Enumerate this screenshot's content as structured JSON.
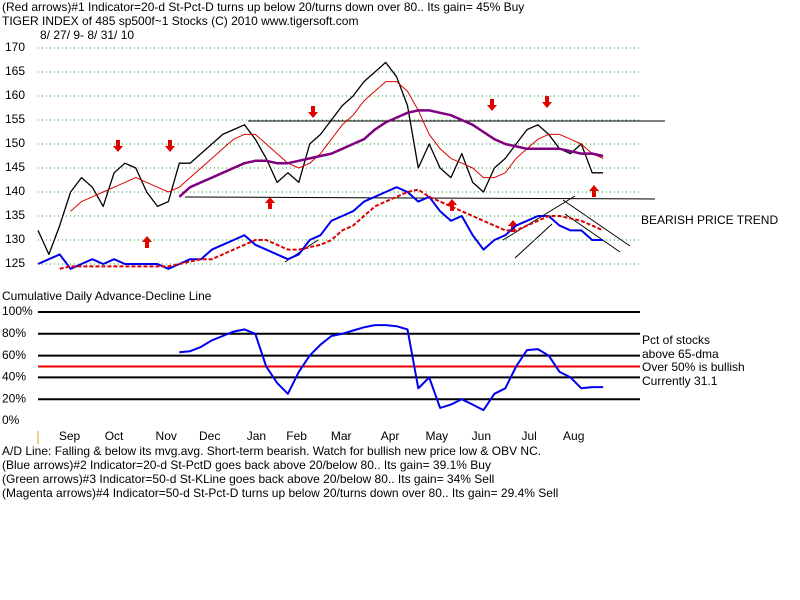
{
  "header": [
    "(Red arrows)#1 Indicator=20-d St-Pct-D turns up below 20/turns down over 80.. Its gain= 45% Buy"
  ],
  "footer": [
    "A/D Line: Falling & below its mvg.avg. Short-term bearish. Watch for bullish new price low & OBV NC.",
    "(Blue arrows)#2 Indicator=20-d St-PctD goes back above 20/below 80.. Its gain= 39.1% Buy",
    "(Green arrows)#3 Indicator=50-d St-KLine goes back above 20/below 80.. Its gain= 34% Sell",
    "(Magenta arrows)#4 Indicator=50-d St-Pct-D turns up below 20/turns down over 80.. Its gain= 29.4% Sell"
  ],
  "chart_data": [
    {
      "type": "line",
      "title": "TIGER INDEX of  485 sp500f~1 Stocks  (C) 2010  www.tigersoft.com",
      "subtitle": "8/ 27/ 9- 8/ 31/ 10",
      "annotations": [
        "BEARISH PRICE TREND"
      ],
      "xlim": [
        0,
        55.4
      ],
      "ylim": [
        122.5,
        172
      ],
      "yticks": [
        125,
        130,
        135,
        140,
        145,
        150,
        155,
        160,
        165,
        170
      ],
      "grid": true,
      "grid_color": "#00a000",
      "series": [
        {
          "color": "#000000",
          "width": 1.3,
          "values": [
            132,
            127,
            133,
            140,
            143,
            141,
            137,
            144,
            146,
            145,
            140,
            137,
            138,
            146,
            146,
            148,
            150,
            152,
            153,
            154,
            151,
            147,
            142,
            144,
            142,
            150,
            152,
            155,
            158,
            160,
            163,
            165,
            167,
            164,
            158,
            145,
            150,
            145,
            143,
            148,
            142,
            140,
            145,
            147,
            150,
            153,
            154,
            152,
            149,
            148,
            150,
            144,
            144
          ]
        },
        {
          "color": "#dd0000",
          "width": 1,
          "values": [
            null,
            null,
            null,
            136,
            138,
            139,
            140,
            141,
            142,
            143,
            142,
            141,
            140,
            141,
            143,
            145,
            147,
            149,
            151,
            152,
            152,
            150,
            148,
            146,
            145,
            146,
            148,
            151,
            154,
            156,
            159,
            161,
            163,
            163,
            161,
            157,
            152,
            149,
            147,
            146,
            145,
            143,
            143,
            144,
            147,
            149,
            151,
            152,
            152,
            151,
            150,
            148,
            147
          ]
        },
        {
          "color": "#800080",
          "width": 2.5,
          "values": [
            null,
            null,
            null,
            null,
            null,
            null,
            null,
            null,
            null,
            null,
            null,
            null,
            null,
            139,
            141,
            142,
            143,
            144,
            145,
            146,
            146.5,
            146.5,
            146,
            146,
            146.5,
            147,
            147.5,
            148,
            149,
            150,
            151,
            153,
            154.5,
            155.5,
            156.5,
            157,
            157,
            156.5,
            156,
            155,
            154,
            152.5,
            151,
            150,
            149.5,
            149,
            149,
            149,
            149,
            148.5,
            148,
            148,
            147.5
          ]
        },
        {
          "name": "Cumulative Daily Advance-Decline Line",
          "color": "#0000ee",
          "width": 2,
          "values": [
            125,
            126,
            127,
            124,
            125,
            126,
            125,
            126,
            125,
            125,
            125,
            125,
            124,
            125,
            126,
            126,
            128,
            129,
            130,
            131,
            129,
            128,
            127,
            126,
            127,
            130,
            131,
            134,
            135,
            136,
            138,
            139,
            140,
            141,
            140,
            138,
            139,
            136,
            134,
            135,
            131,
            128,
            130,
            131,
            133,
            134,
            135,
            135,
            133,
            132,
            132,
            130,
            130
          ]
        },
        {
          "color": "#dd0000",
          "width": 2,
          "dash": true,
          "values": [
            null,
            null,
            124,
            124.5,
            124.5,
            124.5,
            124.5,
            124.5,
            124.5,
            124.5,
            124.5,
            124.5,
            124.5,
            125,
            125.5,
            126,
            126,
            127,
            128,
            129,
            130,
            130,
            129,
            128,
            128,
            128.5,
            129,
            130,
            132,
            133,
            135,
            137,
            138,
            139,
            140,
            140.5,
            139,
            138,
            137,
            136,
            135,
            134,
            133,
            132,
            132,
            133,
            134,
            135,
            135,
            134.5,
            134,
            133,
            132
          ]
        }
      ]
    },
    {
      "type": "line",
      "annotations": [
        "Pct of stocks",
        "above 65-dma",
        "Over 50% is bullish",
        "Currently  31.1"
      ],
      "xlim": [
        0,
        55.4
      ],
      "ylim": [
        0,
        100
      ],
      "yticks": [
        {
          "value": 0,
          "label": "0%"
        },
        {
          "value": 20,
          "label": "20%"
        },
        {
          "value": 40,
          "label": "40%"
        },
        {
          "value": 60,
          "label": "60%"
        },
        {
          "value": 80,
          "label": "80%"
        },
        {
          "value": 100,
          "label": "100%"
        }
      ],
      "xticks": [
        {
          "value": 2.9,
          "label": "Sep"
        },
        {
          "value": 7.0,
          "label": "Oct"
        },
        {
          "value": 11.8,
          "label": "Nov"
        },
        {
          "value": 15.8,
          "label": "Dec"
        },
        {
          "value": 20.1,
          "label": "Jan"
        },
        {
          "value": 23.8,
          "label": "Feb"
        },
        {
          "value": 27.9,
          "label": "Mar"
        },
        {
          "value": 32.4,
          "label": "Apr"
        },
        {
          "value": 36.7,
          "label": "May"
        },
        {
          "value": 40.8,
          "label": "Jun"
        },
        {
          "value": 45.2,
          "label": "Jul"
        },
        {
          "value": 49.3,
          "label": "Aug"
        }
      ],
      "grid": true,
      "grid_color": "#000000",
      "ref_line": {
        "value": 50,
        "color": "#ee0000"
      },
      "series": [
        {
          "color": "#0000ee",
          "width": 2,
          "values": [
            null,
            null,
            null,
            null,
            null,
            null,
            null,
            null,
            null,
            null,
            null,
            null,
            null,
            63,
            64,
            68,
            74,
            78,
            82,
            84,
            80,
            50,
            35,
            25,
            45,
            60,
            70,
            78,
            80,
            83,
            86,
            88,
            88,
            87,
            84,
            30,
            40,
            12,
            15,
            20,
            15,
            10,
            25,
            30,
            50,
            65,
            66,
            60,
            45,
            40,
            30,
            31.1,
            31.1
          ]
        }
      ]
    }
  ]
}
